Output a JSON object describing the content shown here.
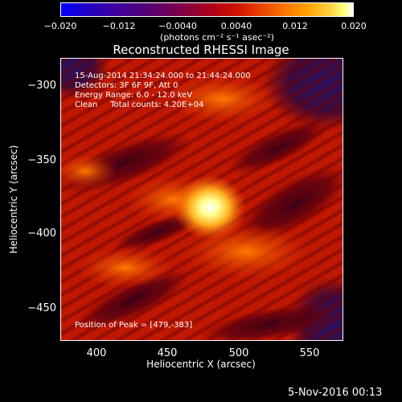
{
  "colorbar": {
    "ticks": [
      "−0.020",
      "−0.012",
      "−0.0040",
      "0.0040",
      "0.012",
      "0.020"
    ],
    "unit_label": "(photons cm⁻² s⁻¹ asec⁻²)"
  },
  "title": "Reconstructed RHESSI Image",
  "annotations": {
    "time_range": "15-Aug-2014 21:34:24.000 to 21:44:24.000",
    "detectors": "Detectors: 3F 6F 9F, Att 0",
    "energy_range": "Energy Range: 6.0 - 12.0 keV",
    "clean_counts": "Clean     Total counts: 4.20E+04",
    "peak_position": "Position of Peak = [479,-383]"
  },
  "axes": {
    "x_label": "Heliocentric X (arcsec)",
    "y_label": "Heliocentric Y (arcsec)",
    "x_ticks": [
      "400",
      "450",
      "500",
      "550"
    ],
    "y_ticks": [
      "−300",
      "−350",
      "−400",
      "−450"
    ],
    "x_range": [
      375,
      570
    ],
    "y_range": [
      -475,
      -285
    ]
  },
  "footer": {
    "date": "5-Nov-2016 00:13"
  }
}
